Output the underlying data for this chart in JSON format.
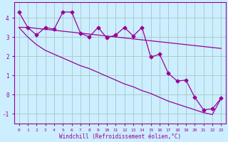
{
  "xlabel": "Windchill (Refroidissement éolien,°C)",
  "x": [
    0,
    1,
    2,
    3,
    4,
    5,
    6,
    7,
    8,
    9,
    10,
    11,
    12,
    13,
    14,
    15,
    16,
    17,
    18,
    19,
    20,
    21,
    22,
    23
  ],
  "y_main": [
    4.3,
    3.5,
    3.1,
    3.5,
    3.4,
    4.3,
    4.3,
    3.2,
    3.0,
    3.5,
    2.95,
    3.1,
    3.5,
    3.05,
    3.5,
    1.95,
    2.1,
    1.1,
    0.7,
    0.75,
    -0.15,
    -0.8,
    -0.75,
    -0.2
  ],
  "y_upper": [
    3.5,
    3.5,
    3.45,
    3.4,
    3.35,
    3.3,
    3.25,
    3.2,
    3.15,
    3.1,
    3.05,
    3.0,
    2.95,
    2.9,
    2.85,
    2.8,
    2.75,
    2.7,
    2.65,
    2.6,
    2.55,
    2.5,
    2.45,
    2.4
  ],
  "y_lower": [
    3.5,
    3.0,
    2.6,
    2.3,
    2.1,
    1.9,
    1.7,
    1.5,
    1.35,
    1.15,
    0.95,
    0.75,
    0.55,
    0.4,
    0.2,
    0.05,
    -0.15,
    -0.35,
    -0.5,
    -0.65,
    -0.8,
    -0.95,
    -1.05,
    -0.2
  ],
  "line_color": "#990099",
  "bg_color": "#cceeff",
  "grid_color": "#aacccc",
  "ylim": [
    -1.5,
    4.8
  ],
  "yticks": [
    -1,
    0,
    1,
    2,
    3,
    4
  ],
  "marker": "D",
  "markersize": 2.5,
  "linewidth": 0.9
}
